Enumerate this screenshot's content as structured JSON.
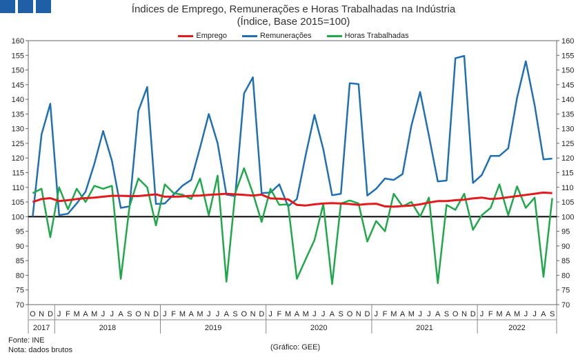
{
  "header": {
    "title_line1": "Índices de Emprego, Remunerações e Horas Trabalhadas na Indústria",
    "title_line2": "(Índice, Base 2015=100)"
  },
  "footer": {
    "source": "Fonte: INE",
    "note": "Nota: dados brutos",
    "credit": "(Gráfico: GEE)"
  },
  "colors": {
    "emprego": "#e31a1c",
    "remuneracoes": "#1f6fb5",
    "horas": "#1fa84a",
    "logo": "#1f5fa8"
  },
  "chart_data": {
    "type": "line",
    "title": "Índices de Emprego, Remunerações e Horas Trabalhadas na Indústria",
    "subtitle": "(Índice, Base 2015=100)",
    "ylim": [
      70,
      160
    ],
    "yticks": [
      70,
      75,
      80,
      85,
      90,
      95,
      100,
      105,
      110,
      115,
      120,
      125,
      130,
      135,
      140,
      145,
      150,
      155,
      160
    ],
    "grid": false,
    "reference_line": 100,
    "legend_position": "top-center",
    "x": [
      "O",
      "N",
      "D",
      "J",
      "F",
      "M",
      "A",
      "M",
      "J",
      "J",
      "A",
      "S",
      "O",
      "N",
      "D",
      "J",
      "F",
      "M",
      "A",
      "M",
      "J",
      "J",
      "A",
      "S",
      "O",
      "N",
      "D",
      "J",
      "F",
      "M",
      "A",
      "M",
      "J",
      "J",
      "A",
      "S",
      "O",
      "N",
      "D",
      "J",
      "F",
      "M",
      "A",
      "M",
      "J",
      "J",
      "A",
      "S",
      "O",
      "N",
      "D",
      "J",
      "F",
      "M",
      "A",
      "M",
      "J",
      "J",
      "A",
      "S"
    ],
    "years": [
      {
        "label": "2017",
        "start": 0,
        "count": 3
      },
      {
        "label": "2018",
        "start": 3,
        "count": 12
      },
      {
        "label": "2019",
        "start": 15,
        "count": 12
      },
      {
        "label": "2020",
        "start": 27,
        "count": 12
      },
      {
        "label": "2021",
        "start": 39,
        "count": 12
      },
      {
        "label": "2022",
        "start": 51,
        "count": 9
      }
    ],
    "series": [
      {
        "name": "Emprego",
        "key": "emprego",
        "values": [
          105.0,
          106.0,
          106.3,
          105.3,
          105.6,
          106.0,
          106.3,
          106.5,
          106.8,
          107.1,
          107.1,
          107.0,
          107.0,
          107.3,
          107.6,
          106.8,
          106.8,
          106.9,
          107.1,
          107.2,
          107.4,
          107.6,
          107.8,
          107.6,
          107.4,
          107.2,
          107.5,
          106.2,
          106.1,
          105.9,
          104.0,
          103.8,
          104.2,
          104.5,
          104.6,
          104.5,
          104.3,
          104.0,
          104.3,
          104.4,
          103.5,
          103.4,
          103.6,
          103.8,
          104.2,
          104.8,
          105.3,
          105.3,
          105.6,
          105.8,
          106.2,
          106.5,
          106.0,
          106.2,
          106.6,
          107.0,
          107.4,
          107.8,
          108.2,
          108.0
        ]
      },
      {
        "name": "Remunerações",
        "key": "remuneracoes",
        "values": [
          100.0,
          128.0,
          138.5,
          100.5,
          101.0,
          104.5,
          108.5,
          118.0,
          129.2,
          119.0,
          103.0,
          103.5,
          136.0,
          144.2,
          104.3,
          104.5,
          107.5,
          110.5,
          112.5,
          123.5,
          135.0,
          125.0,
          107.5,
          107.0,
          142.0,
          147.5,
          108.0,
          108.2,
          111.0,
          103.5,
          106.0,
          121.0,
          134.7,
          123.0,
          107.3,
          107.8,
          145.5,
          145.2,
          107.2,
          109.5,
          113.0,
          112.5,
          114.5,
          131.0,
          142.5,
          127.5,
          112.0,
          112.3,
          154.0,
          154.8,
          111.5,
          114.2,
          120.7,
          120.7,
          123.3,
          140.5,
          153.0,
          138.0,
          119.5,
          119.8
        ]
      },
      {
        "name": "Horas Trabalhadas",
        "key": "horas",
        "values": [
          108.0,
          109.5,
          93.0,
          110.0,
          102.5,
          109.5,
          105.0,
          110.5,
          109.5,
          110.5,
          78.8,
          103.5,
          113.0,
          110.0,
          97.0,
          111.0,
          108.0,
          107.5,
          106.0,
          113.0,
          100.5,
          114.0,
          77.8,
          108.0,
          116.5,
          108.0,
          98.2,
          109.5,
          104.0,
          104.2,
          78.8,
          85.5,
          92.0,
          104.3,
          77.0,
          104.5,
          105.5,
          104.5,
          91.5,
          98.5,
          95.0,
          107.8,
          103.5,
          105.0,
          100.0,
          106.5,
          77.3,
          104.0,
          102.3,
          107.8,
          95.5,
          100.5,
          103.0,
          111.0,
          100.5,
          110.3,
          103.0,
          106.5,
          79.5,
          106.3
        ]
      }
    ]
  }
}
